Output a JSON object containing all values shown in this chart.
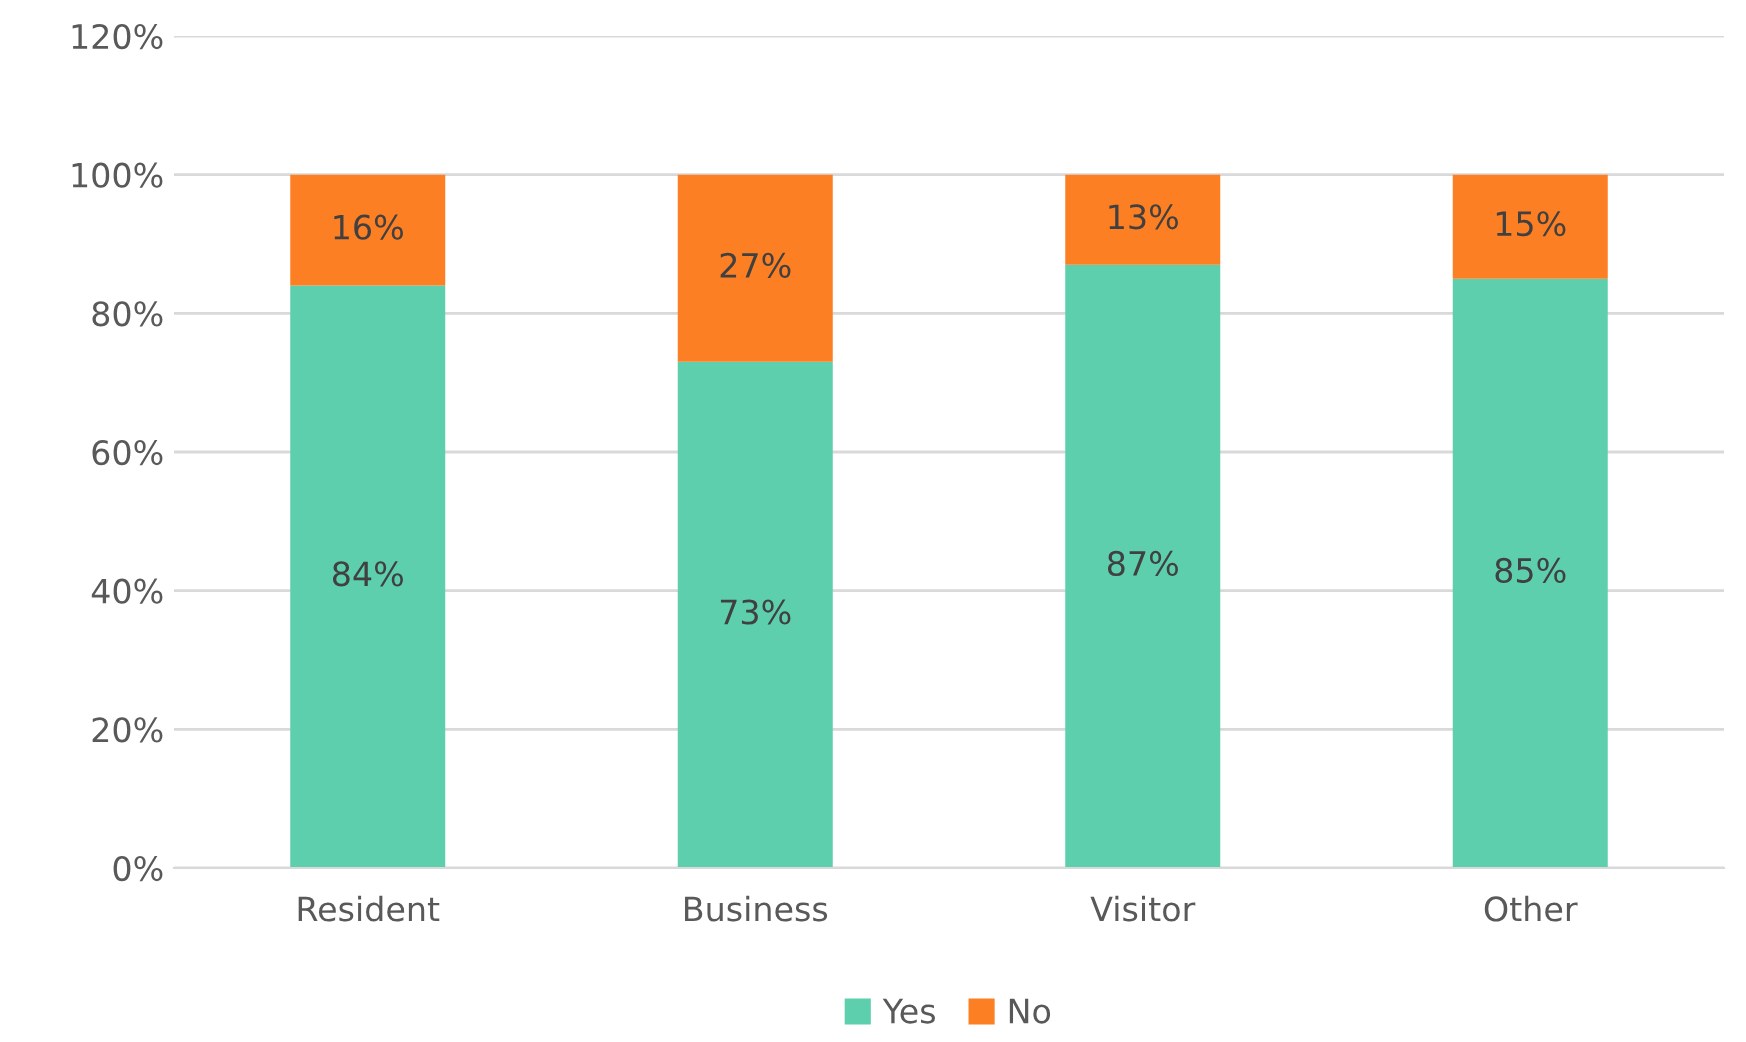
{
  "chart_data": {
    "type": "bar",
    "stacked": true,
    "categories": [
      "Resident",
      "Business",
      "Visitor",
      "Other"
    ],
    "series": [
      {
        "name": "Yes",
        "color": "#5dcfac",
        "values": [
          84,
          73,
          87,
          85
        ],
        "value_labels": [
          "84%",
          "73%",
          "87%",
          "85%"
        ]
      },
      {
        "name": "No",
        "color": "#fd7f23",
        "values": [
          16,
          27,
          13,
          15
        ],
        "value_labels": [
          "16%",
          "27%",
          "13%",
          "15%"
        ]
      }
    ],
    "ylim": [
      0,
      120
    ],
    "yticks": [
      {
        "value": 0,
        "label": "0%"
      },
      {
        "value": 20,
        "label": "20%"
      },
      {
        "value": 40,
        "label": "40%"
      },
      {
        "value": 60,
        "label": "60%"
      },
      {
        "value": 80,
        "label": "80%"
      },
      {
        "value": 100,
        "label": "100%"
      },
      {
        "value": 120,
        "label": "120%"
      }
    ],
    "grid": "y",
    "legend": "bottom"
  }
}
